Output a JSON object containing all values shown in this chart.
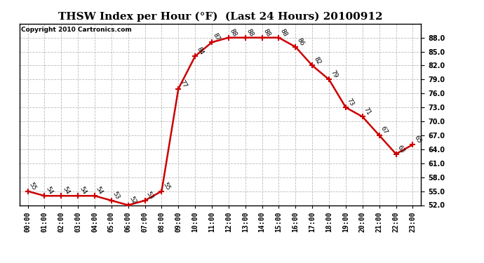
{
  "title": "THSW Index per Hour (°F)  (Last 24 Hours) 20100912",
  "copyright": "Copyright 2010 Cartronics.com",
  "hours": [
    0,
    1,
    2,
    3,
    4,
    5,
    6,
    7,
    8,
    9,
    10,
    11,
    12,
    13,
    14,
    15,
    16,
    17,
    18,
    19,
    20,
    21,
    22,
    23
  ],
  "values": [
    55,
    54,
    54,
    54,
    54,
    53,
    52,
    53,
    55,
    77,
    84,
    87,
    88,
    88,
    88,
    88,
    86,
    82,
    79,
    73,
    71,
    67,
    63,
    65
  ],
  "xlabels": [
    "00:00",
    "01:00",
    "02:00",
    "03:00",
    "04:00",
    "05:00",
    "06:00",
    "07:00",
    "08:00",
    "09:00",
    "10:00",
    "11:00",
    "12:00",
    "13:00",
    "14:00",
    "15:00",
    "16:00",
    "17:00",
    "18:00",
    "19:00",
    "20:00",
    "21:00",
    "22:00",
    "23:00"
  ],
  "line_color": "#cc0000",
  "marker_color": "#cc0000",
  "bg_color": "#ffffff",
  "grid_color": "#bbbbbb",
  "ylim": [
    52,
    91
  ],
  "yticks": [
    52.0,
    55.0,
    58.0,
    61.0,
    64.0,
    67.0,
    70.0,
    73.0,
    76.0,
    79.0,
    82.0,
    85.0,
    88.0
  ],
  "title_fontsize": 11,
  "label_fontsize": 6.5,
  "tick_fontsize": 7,
  "copyright_fontsize": 6.5
}
